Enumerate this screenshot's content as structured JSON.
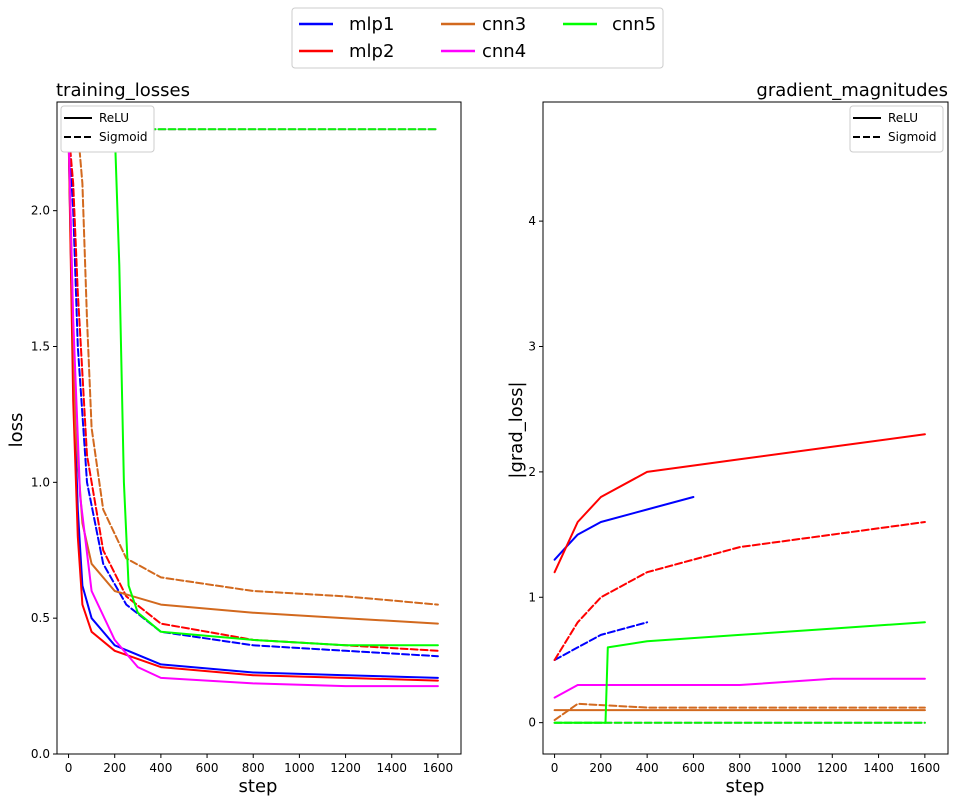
{
  "figure": {
    "legend": {
      "entries": [
        {
          "name": "mlp1",
          "color": "#0000ff"
        },
        {
          "name": "mlp2",
          "color": "#ff0000"
        },
        {
          "name": "cnn3",
          "color": "#d2691e"
        },
        {
          "name": "cnn4",
          "color": "#ff00ff"
        },
        {
          "name": "cnn5",
          "color": "#00ff00"
        }
      ],
      "placement": "top-center",
      "columns": 3
    },
    "line_styles": [
      {
        "label": "ReLU",
        "dash": "solid"
      },
      {
        "label": "Sigmoid",
        "dash": "dashed"
      }
    ]
  },
  "chart_data": [
    {
      "type": "line",
      "title": "training_losses",
      "title_align": "left",
      "xlabel": "step",
      "ylabel": "loss",
      "xlim": [
        -50,
        1700
      ],
      "ylim": [
        0,
        2.4
      ],
      "xticks": [
        0,
        200,
        400,
        600,
        800,
        1000,
        1200,
        1400,
        1600
      ],
      "yticks": [
        0.0,
        0.5,
        1.0,
        1.5,
        2.0
      ],
      "ytick_labels": [
        "0.0",
        "0.5",
        "1.0",
        "1.5",
        "2.0"
      ],
      "style_legend_placement": "top-left",
      "grid": false,
      "series": [
        {
          "name": "mlp1",
          "activation": "ReLU",
          "color": "#0000ff",
          "x": [
            0,
            20,
            40,
            60,
            100,
            200,
            400,
            800,
            1200,
            1600
          ],
          "y": [
            2.3,
            1.4,
            0.9,
            0.62,
            0.5,
            0.4,
            0.33,
            0.3,
            0.29,
            0.28
          ]
        },
        {
          "name": "mlp1",
          "activation": "Sigmoid",
          "color": "#0000ff",
          "x": [
            0,
            20,
            40,
            80,
            150,
            250,
            400,
            800,
            1200,
            1600
          ],
          "y": [
            2.3,
            2.0,
            1.5,
            1.0,
            0.7,
            0.55,
            0.45,
            0.4,
            0.38,
            0.36
          ]
        },
        {
          "name": "mlp2",
          "activation": "ReLU",
          "color": "#ff0000",
          "x": [
            0,
            20,
            40,
            60,
            100,
            200,
            400,
            800,
            1200,
            1600
          ],
          "y": [
            2.3,
            1.3,
            0.8,
            0.55,
            0.45,
            0.38,
            0.32,
            0.29,
            0.28,
            0.27
          ]
        },
        {
          "name": "mlp2",
          "activation": "Sigmoid",
          "color": "#ff0000",
          "x": [
            0,
            20,
            40,
            80,
            150,
            250,
            400,
            800,
            1200,
            1600
          ],
          "y": [
            2.3,
            2.1,
            1.7,
            1.1,
            0.75,
            0.58,
            0.48,
            0.42,
            0.4,
            0.38
          ]
        },
        {
          "name": "cnn3",
          "activation": "ReLU",
          "color": "#d2691e",
          "x": [
            0,
            30,
            60,
            100,
            200,
            400,
            800,
            1200,
            1600
          ],
          "y": [
            2.3,
            1.2,
            0.85,
            0.7,
            0.6,
            0.55,
            0.52,
            0.5,
            0.48
          ]
        },
        {
          "name": "cnn3",
          "activation": "Sigmoid",
          "color": "#d2691e",
          "x": [
            0,
            40,
            60,
            80,
            100,
            150,
            250,
            400,
            800,
            1200,
            1600
          ],
          "y": [
            2.3,
            2.3,
            2.1,
            1.6,
            1.2,
            0.9,
            0.72,
            0.65,
            0.6,
            0.58,
            0.55
          ]
        },
        {
          "name": "cnn4",
          "activation": "ReLU",
          "color": "#ff00ff",
          "x": [
            0,
            20,
            50,
            100,
            200,
            300,
            400,
            800,
            1200,
            1600
          ],
          "y": [
            2.3,
            1.6,
            0.95,
            0.6,
            0.42,
            0.32,
            0.28,
            0.26,
            0.25,
            0.25
          ]
        },
        {
          "name": "cnn4",
          "activation": "Sigmoid",
          "color": "#ff00ff",
          "x": [
            0,
            400,
            800,
            1200,
            1600
          ],
          "y": [
            2.3,
            2.3,
            2.3,
            2.3,
            2.3
          ]
        },
        {
          "name": "cnn5",
          "activation": "ReLU",
          "color": "#00ff00",
          "x": [
            0,
            200,
            220,
            240,
            260,
            300,
            400,
            800,
            1200,
            1600
          ],
          "y": [
            2.3,
            2.3,
            1.8,
            1.0,
            0.62,
            0.52,
            0.45,
            0.42,
            0.4,
            0.4
          ]
        },
        {
          "name": "cnn5",
          "activation": "Sigmoid",
          "color": "#00ff00",
          "x": [
            0,
            400,
            800,
            1200,
            1600
          ],
          "y": [
            2.3,
            2.3,
            2.3,
            2.3,
            2.3
          ]
        }
      ]
    },
    {
      "type": "line",
      "title": "gradient_magnitudes",
      "title_align": "right",
      "xlabel": "step",
      "ylabel": "|grad_loss|",
      "xlim": [
        -50,
        1700
      ],
      "ylim": [
        -0.25,
        4.95
      ],
      "xticks": [
        0,
        200,
        400,
        600,
        800,
        1000,
        1200,
        1400,
        1600
      ],
      "yticks": [
        0,
        1,
        2,
        3,
        4
      ],
      "ytick_labels": [
        "0",
        "1",
        "2",
        "3",
        "4"
      ],
      "style_legend_placement": "top-right",
      "grid": false,
      "series": [
        {
          "name": "mlp1",
          "activation": "ReLU",
          "color": "#0000ff",
          "x": [
            0,
            50,
            100,
            200,
            400,
            600
          ],
          "y": [
            1.3,
            1.4,
            1.5,
            1.6,
            1.7,
            1.8
          ]
        },
        {
          "name": "mlp1",
          "activation": "Sigmoid",
          "color": "#0000ff",
          "x": [
            0,
            100,
            200,
            400
          ],
          "y": [
            0.5,
            0.6,
            0.7,
            0.8
          ]
        },
        {
          "name": "mlp2",
          "activation": "ReLU",
          "color": "#ff0000",
          "x": [
            0,
            100,
            200,
            400,
            800,
            1200,
            1600
          ],
          "y": [
            1.2,
            1.6,
            1.8,
            2.0,
            2.1,
            2.2,
            2.3
          ]
        },
        {
          "name": "mlp2",
          "activation": "Sigmoid",
          "color": "#ff0000",
          "x": [
            0,
            100,
            200,
            400,
            800,
            1200,
            1600
          ],
          "y": [
            0.5,
            0.8,
            1.0,
            1.2,
            1.4,
            1.5,
            1.6
          ]
        },
        {
          "name": "cnn3",
          "activation": "ReLU",
          "color": "#d2691e",
          "x": [
            0,
            100,
            400,
            800,
            1200,
            1600
          ],
          "y": [
            0.1,
            0.1,
            0.1,
            0.1,
            0.1,
            0.1
          ]
        },
        {
          "name": "cnn3",
          "activation": "Sigmoid",
          "color": "#d2691e",
          "x": [
            0,
            100,
            400,
            800,
            1200,
            1600
          ],
          "y": [
            0.02,
            0.15,
            0.12,
            0.12,
            0.12,
            0.12
          ]
        },
        {
          "name": "cnn4",
          "activation": "ReLU",
          "color": "#ff00ff",
          "x": [
            0,
            100,
            200,
            400,
            800,
            1200,
            1600
          ],
          "y": [
            0.2,
            0.3,
            0.3,
            0.3,
            0.3,
            0.35,
            0.35
          ]
        },
        {
          "name": "cnn4",
          "activation": "Sigmoid",
          "color": "#ff00ff",
          "x": [
            0,
            400,
            800,
            1200,
            1600
          ],
          "y": [
            0.0,
            0.0,
            0.0,
            0.0,
            0.0
          ]
        },
        {
          "name": "cnn5",
          "activation": "ReLU",
          "color": "#00ff00",
          "x": [
            0,
            220,
            230,
            400,
            800,
            1200,
            1600
          ],
          "y": [
            0.0,
            0.0,
            0.6,
            0.65,
            0.7,
            0.75,
            0.8
          ]
        },
        {
          "name": "cnn5",
          "activation": "Sigmoid",
          "color": "#00ff00",
          "x": [
            0,
            400,
            800,
            1200,
            1600
          ],
          "y": [
            0.0,
            0.0,
            0.0,
            0.0,
            0.0
          ]
        }
      ]
    }
  ]
}
